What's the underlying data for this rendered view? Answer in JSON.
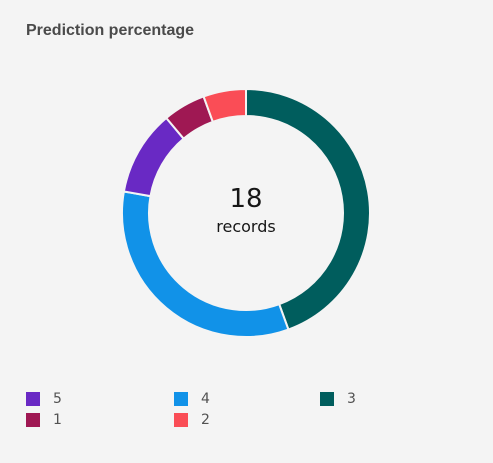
{
  "card": {
    "title": "Prediction percentage"
  },
  "chart_data": {
    "type": "pie",
    "variant": "donut",
    "title": "Prediction percentage",
    "center_value": "18",
    "center_caption": "records",
    "total": 18,
    "slices": [
      {
        "name": "3",
        "value": 8,
        "color": "#005d5d"
      },
      {
        "name": "4",
        "value": 6,
        "color": "#1192e8"
      },
      {
        "name": "5",
        "value": 2,
        "color": "#6929c4"
      },
      {
        "name": "1",
        "value": 1,
        "color": "#9f1853"
      },
      {
        "name": "2",
        "value": 1,
        "color": "#fa4d56"
      }
    ],
    "legend": {
      "placement": "bottom-left",
      "items": [
        {
          "name": "5",
          "color": "#6929c4"
        },
        {
          "name": "4",
          "color": "#1192e8"
        },
        {
          "name": "3",
          "color": "#005d5d"
        },
        {
          "name": "1",
          "color": "#9f1853"
        },
        {
          "name": "2",
          "color": "#fa4d56"
        }
      ]
    }
  }
}
